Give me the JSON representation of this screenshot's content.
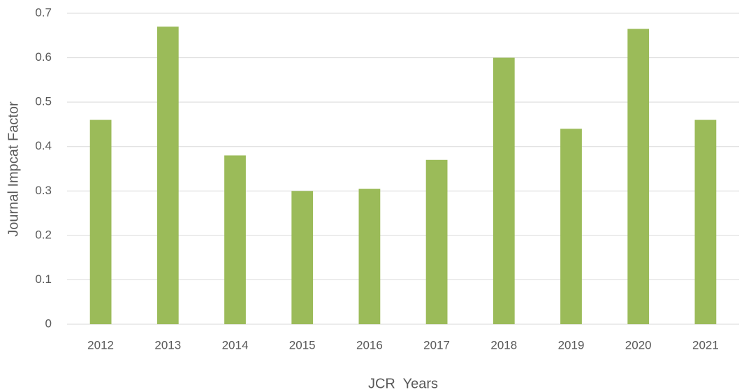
{
  "chart_data": {
    "type": "bar",
    "categories": [
      "2012",
      "2013",
      "2014",
      "2015",
      "2016",
      "2017",
      "2018",
      "2019",
      "2020",
      "2021"
    ],
    "values": [
      0.46,
      0.67,
      0.38,
      0.3,
      0.305,
      0.37,
      0.6,
      0.44,
      0.665,
      0.46
    ],
    "color": "#9bbb59",
    "ylim": [
      0,
      0.7
    ],
    "yticks": [
      0,
      0.1,
      0.2,
      0.3,
      0.4,
      0.5,
      0.6,
      0.7
    ],
    "grid": true,
    "x_label": "JCR  Years",
    "y_label": "Journal Impcat Factor"
  }
}
